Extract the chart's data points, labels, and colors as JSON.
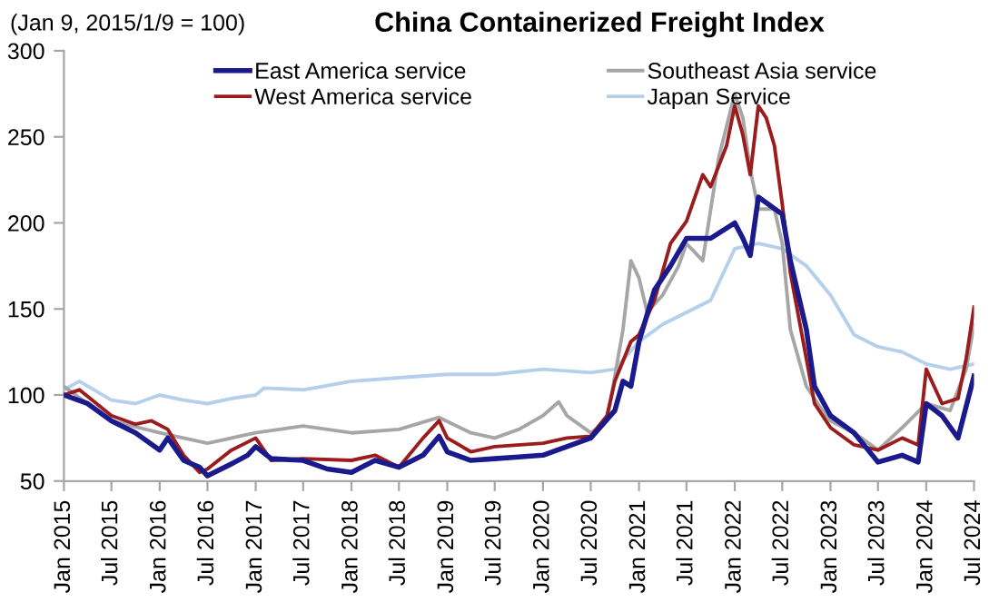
{
  "chart_data": {
    "type": "line",
    "title": "China Containerized Freight Index",
    "subtitle": "(Jan 9, 2015/1/9 = 100)",
    "series": [
      {
        "name": "East America service",
        "color": "#1a1a8c",
        "x": [
          "2015-01",
          "2015-04",
          "2015-07",
          "2015-10",
          "2016-01",
          "2016-02",
          "2016-04",
          "2016-06",
          "2016-07",
          "2016-10",
          "2016-12",
          "2017-01",
          "2017-03",
          "2017-07",
          "2017-10",
          "2018-01",
          "2018-04",
          "2018-07",
          "2018-10",
          "2018-12",
          "2019-01",
          "2019-04",
          "2019-07",
          "2019-10",
          "2020-01",
          "2020-04",
          "2020-07",
          "2020-10",
          "2020-11",
          "2020-12",
          "2021-01",
          "2021-03",
          "2021-05",
          "2021-07",
          "2021-10",
          "2022-01",
          "2022-02",
          "2022-03",
          "2022-04",
          "2022-07",
          "2022-08",
          "2022-10",
          "2022-11",
          "2023-01",
          "2023-04",
          "2023-07",
          "2023-10",
          "2023-12",
          "2024-01",
          "2024-03",
          "2024-05",
          "2024-07"
        ],
        "values": [
          100,
          95,
          85,
          78,
          68,
          75,
          62,
          58,
          53,
          60,
          65,
          70,
          63,
          62,
          57,
          55,
          62,
          58,
          65,
          76,
          67,
          62,
          63,
          64,
          65,
          70,
          75,
          91,
          108,
          105,
          131,
          161,
          175,
          191,
          191,
          200,
          191,
          181,
          215,
          205,
          178,
          138,
          105,
          88,
          78,
          61,
          65,
          61,
          95,
          88,
          75,
          111
        ]
      },
      {
        "name": "West America service",
        "color": "#9b1c1c",
        "x": [
          "2015-01",
          "2015-03",
          "2015-07",
          "2015-10",
          "2015-12",
          "2016-02",
          "2016-04",
          "2016-06",
          "2016-07",
          "2016-10",
          "2017-01",
          "2017-03",
          "2017-07",
          "2018-01",
          "2018-04",
          "2018-07",
          "2018-10",
          "2018-12",
          "2019-01",
          "2019-04",
          "2019-07",
          "2020-01",
          "2020-04",
          "2020-07",
          "2020-09",
          "2020-10",
          "2020-12",
          "2021-01",
          "2021-03",
          "2021-05",
          "2021-07",
          "2021-09",
          "2021-10",
          "2021-12",
          "2022-01",
          "2022-02",
          "2022-03",
          "2022-04",
          "2022-05",
          "2022-06",
          "2022-07",
          "2022-08",
          "2022-10",
          "2022-11",
          "2023-01",
          "2023-04",
          "2023-07",
          "2023-10",
          "2023-12",
          "2024-01",
          "2024-03",
          "2024-05",
          "2024-06",
          "2024-07"
        ],
        "values": [
          100,
          103,
          88,
          83,
          85,
          80,
          65,
          55,
          57,
          68,
          75,
          62,
          63,
          62,
          65,
          58,
          75,
          85,
          75,
          67,
          70,
          72,
          75,
          76,
          88,
          108,
          131,
          135,
          155,
          188,
          201,
          228,
          221,
          245,
          268,
          251,
          228,
          268,
          261,
          245,
          211,
          171,
          121,
          95,
          81,
          71,
          68,
          75,
          71,
          115,
          95,
          98,
          121,
          151
        ]
      },
      {
        "name": "Southeast Asia service",
        "color": "#a6a6a6",
        "x": [
          "2015-01",
          "2015-04",
          "2015-07",
          "2016-01",
          "2016-07",
          "2017-01",
          "2017-07",
          "2018-01",
          "2018-07",
          "2018-12",
          "2019-04",
          "2019-07",
          "2019-10",
          "2020-01",
          "2020-03",
          "2020-04",
          "2020-07",
          "2020-09",
          "2020-11",
          "2020-12",
          "2021-01",
          "2021-02",
          "2021-04",
          "2021-06",
          "2021-07",
          "2021-09",
          "2021-11",
          "2022-01",
          "2022-02",
          "2022-03",
          "2022-04",
          "2022-06",
          "2022-07",
          "2022-08",
          "2022-10",
          "2022-12",
          "2023-01",
          "2023-04",
          "2023-07",
          "2023-10",
          "2024-01",
          "2024-04",
          "2024-06",
          "2024-07"
        ],
        "values": [
          105,
          95,
          85,
          78,
          72,
          78,
          82,
          78,
          80,
          87,
          78,
          75,
          80,
          88,
          96,
          88,
          78,
          85,
          138,
          178,
          168,
          148,
          158,
          175,
          188,
          178,
          238,
          275,
          261,
          231,
          208,
          208,
          188,
          138,
          105,
          91,
          85,
          78,
          68,
          81,
          95,
          91,
          115,
          141
        ]
      },
      {
        "name": "Japan Service",
        "color": "#b4d0ea",
        "x": [
          "2015-01",
          "2015-03",
          "2015-07",
          "2015-10",
          "2016-01",
          "2016-04",
          "2016-07",
          "2016-10",
          "2017-01",
          "2017-02",
          "2017-07",
          "2018-01",
          "2018-07",
          "2019-01",
          "2019-07",
          "2020-01",
          "2020-07",
          "2020-10",
          "2021-01",
          "2021-04",
          "2021-07",
          "2021-10",
          "2022-01",
          "2022-04",
          "2022-07",
          "2022-10",
          "2023-01",
          "2023-04",
          "2023-07",
          "2023-10",
          "2024-01",
          "2024-04",
          "2024-07"
        ],
        "values": [
          103,
          108,
          97,
          95,
          100,
          97,
          95,
          98,
          100,
          104,
          103,
          108,
          110,
          112,
          112,
          115,
          113,
          115,
          131,
          141,
          148,
          155,
          185,
          188,
          185,
          175,
          158,
          135,
          128,
          125,
          118,
          115,
          118
        ]
      }
    ],
    "xlim": [
      "2015-01",
      "2024-07"
    ],
    "xticks": [
      {
        "value": "2015-01",
        "label": "Jan 2015"
      },
      {
        "value": "2015-07",
        "label": "Jul 2015"
      },
      {
        "value": "2016-01",
        "label": "Jan 2016"
      },
      {
        "value": "2016-07",
        "label": "Jul 2016"
      },
      {
        "value": "2017-01",
        "label": "Jan 2017"
      },
      {
        "value": "2017-07",
        "label": "Jul 2017"
      },
      {
        "value": "2018-01",
        "label": "Jan 2018"
      },
      {
        "value": "2018-07",
        "label": "Jul 2018"
      },
      {
        "value": "2019-01",
        "label": "Jan 2019"
      },
      {
        "value": "2019-07",
        "label": "Jul 2019"
      },
      {
        "value": "2020-01",
        "label": "Jan 2020"
      },
      {
        "value": "2020-07",
        "label": "Jul 2020"
      },
      {
        "value": "2021-01",
        "label": "Jan 2021"
      },
      {
        "value": "2021-07",
        "label": "Jul 2021"
      },
      {
        "value": "2022-01",
        "label": "Jan 2022"
      },
      {
        "value": "2022-07",
        "label": "Jul 2022"
      },
      {
        "value": "2023-01",
        "label": "Jan 2023"
      },
      {
        "value": "2023-07",
        "label": "Jul 2023"
      },
      {
        "value": "2024-01",
        "label": "Jan 2024"
      },
      {
        "value": "2024-07",
        "label": "Jul 2024"
      }
    ],
    "ylim": [
      50,
      300
    ],
    "yticks": [
      50,
      100,
      150,
      200,
      250,
      300
    ],
    "grid": false,
    "legend": "top",
    "marker": "none",
    "line_style": "solid"
  }
}
